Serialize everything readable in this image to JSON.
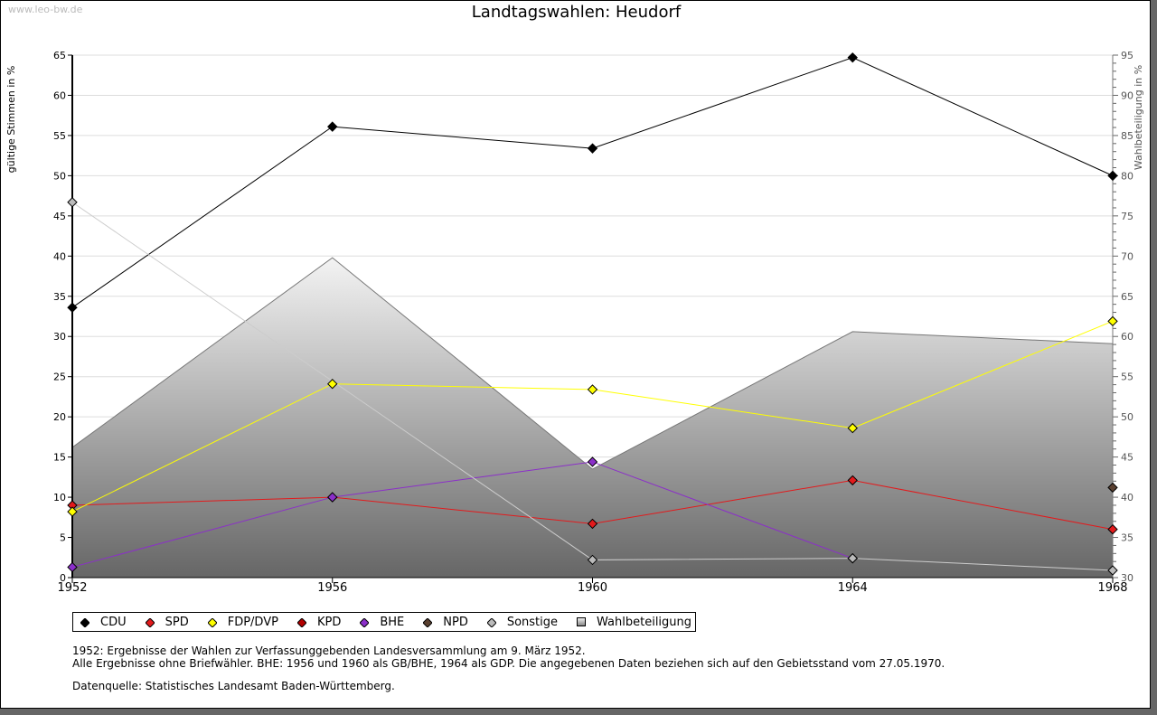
{
  "watermark": "www.leo-bw.de",
  "chart_data": {
    "type": "line",
    "title": "Landtagswahlen: Heudorf",
    "ylabel": "gültige Stimmen in %",
    "y2label": "Wahlbeteiligung in %",
    "xlabel": "",
    "x": [
      1952,
      1956,
      1960,
      1964,
      1968
    ],
    "xticks": [
      "1952",
      "1956",
      "1960",
      "1964",
      "1968"
    ],
    "ylim": [
      0,
      65
    ],
    "y2lim": [
      30,
      95
    ],
    "yticks": [
      "0",
      "5",
      "10",
      "15",
      "20",
      "25",
      "30",
      "35",
      "40",
      "45",
      "50",
      "55",
      "60",
      "65"
    ],
    "y2ticks": [
      "30",
      "35",
      "40",
      "45",
      "50",
      "55",
      "60",
      "65",
      "70",
      "75",
      "80",
      "85",
      "90",
      "95"
    ],
    "grid": true,
    "legend_position": "bottom-left",
    "series": [
      {
        "name": "CDU",
        "color": "#000000",
        "values": [
          33.6,
          56.1,
          53.4,
          64.7,
          50.0
        ]
      },
      {
        "name": "SPD",
        "color": "#e31a1c",
        "values": [
          9.0,
          10.0,
          6.7,
          12.1,
          6.0
        ]
      },
      {
        "name": "FDP/DVP",
        "color": "#ffff00",
        "values": [
          8.2,
          24.1,
          23.4,
          18.6,
          31.9
        ]
      },
      {
        "name": "KPD",
        "color": "#b30000",
        "values": [
          null,
          null,
          null,
          null,
          null
        ]
      },
      {
        "name": "BHE",
        "color": "#8b2fc9",
        "values": [
          1.3,
          10.0,
          14.4,
          2.4,
          null
        ]
      },
      {
        "name": "NPD",
        "color": "#5a4030",
        "values": [
          null,
          null,
          null,
          null,
          11.2
        ]
      },
      {
        "name": "Sonstige",
        "color": "#bbbbbb",
        "values": [
          46.7,
          null,
          2.2,
          2.4,
          0.9
        ]
      }
    ],
    "area_series": {
      "name": "Wahlbeteiligung",
      "axis": "right",
      "values": [
        46.2,
        69.8,
        43.5,
        60.6,
        59.1
      ]
    }
  },
  "legend": {
    "items": [
      {
        "label": "CDU",
        "color": "#000000",
        "shape": "diamond"
      },
      {
        "label": "SPD",
        "color": "#e31a1c",
        "shape": "diamond"
      },
      {
        "label": "FDP/DVP",
        "color": "#ffff00",
        "shape": "diamond"
      },
      {
        "label": "KPD",
        "color": "#b30000",
        "shape": "diamond"
      },
      {
        "label": "BHE",
        "color": "#8b2fc9",
        "shape": "diamond"
      },
      {
        "label": "NPD",
        "color": "#5a4030",
        "shape": "diamond"
      },
      {
        "label": "Sonstige",
        "color": "#bbbbbb",
        "shape": "diamond"
      },
      {
        "label": "Wahlbeteiligung",
        "color": "#bbbbbb",
        "shape": "square"
      }
    ]
  },
  "notes": [
    "1952: Ergebnisse der Wahlen zur Verfassunggebenden Landesversammlung am 9. März 1952.",
    "Alle Ergebnisse ohne Briefwähler. BHE: 1956 und 1960 als GB/BHE, 1964 als GDP. Die angegebenen Daten beziehen sich auf den Gebietsstand vom 27.05.1970."
  ],
  "source": "Datenquelle: Statistisches Landesamt Baden-Württemberg."
}
